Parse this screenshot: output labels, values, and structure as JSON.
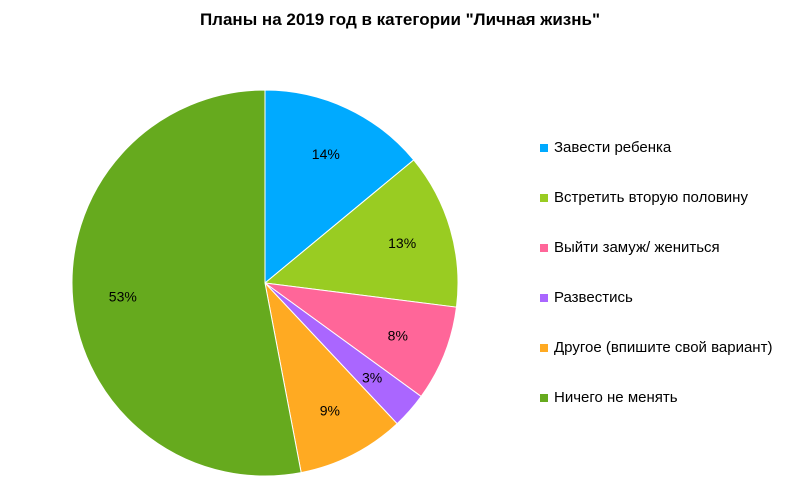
{
  "chart_data": {
    "type": "pie",
    "title": "Планы на 2019 год в категории \"Личная жизнь\"",
    "slices": [
      {
        "label": "Завести ребенка",
        "value": 14,
        "value_label": "14%",
        "color": "#00aaff"
      },
      {
        "label": "Встретить вторую половину",
        "value": 13,
        "value_label": "13%",
        "color": "#99cc22"
      },
      {
        "label": "Выйти замуж/ жениться",
        "value": 8,
        "value_label": "8%",
        "color": "#ff6699"
      },
      {
        "label": "Развестись",
        "value": 3,
        "value_label": "3%",
        "color": "#aa66ff"
      },
      {
        "label": "Другое (впишите свой вариант)",
        "value": 9,
        "value_label": "9%",
        "color": "#ffaa22"
      },
      {
        "label": "Ничего не менять",
        "value": 53,
        "value_label": "53%",
        "color": "#66aa1e"
      }
    ],
    "legend": "right"
  }
}
